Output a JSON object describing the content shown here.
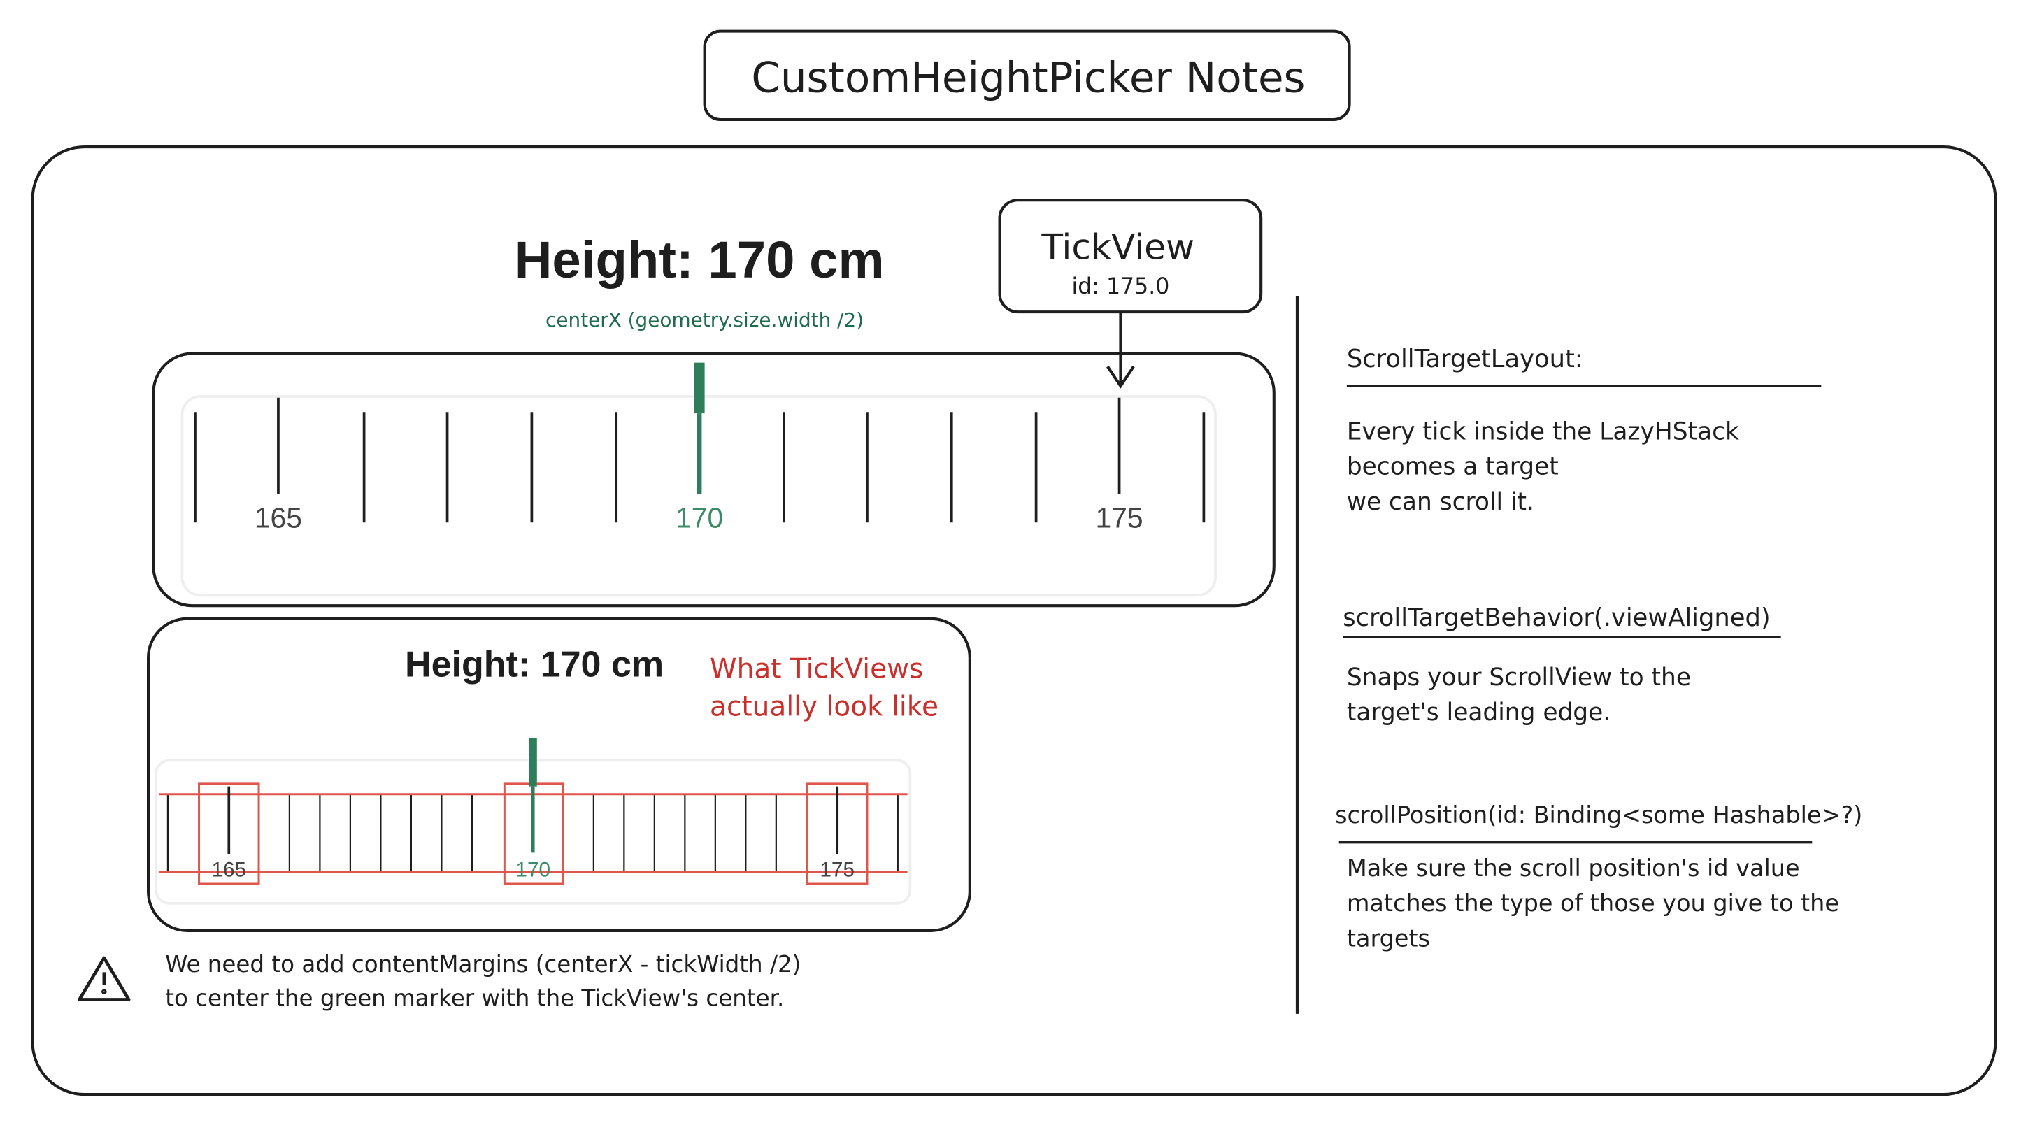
{
  "header": {
    "title": "CustomHeightPicker Notes"
  },
  "picker": {
    "heading": "Height: 170 cm",
    "center_note": "centerX (geometry.size.width /2)",
    "labels": [
      "165",
      "170",
      "175"
    ]
  },
  "tickview": {
    "title": "TickView",
    "id": "id: 175.0"
  },
  "debug": {
    "heading": "Height: 170 cm",
    "note": [
      "What TickViews",
      "actually look like"
    ],
    "labels": [
      "165",
      "170",
      "175"
    ]
  },
  "warning": {
    "lines": [
      "We need to add contentMargins (centerX - tickWidth /2)",
      "to center the green marker with the TickView's center."
    ]
  },
  "notes": [
    {
      "heading": "ScrollTargetLayout:",
      "body": [
        "Every tick inside the LazyHStack",
        "becomes a target",
        "we can scroll it."
      ]
    },
    {
      "heading": "scrollTargetBehavior(.viewAligned)",
      "body": [
        "Snaps your ScrollView to the",
        "target's leading edge."
      ]
    },
    {
      "heading": "scrollPosition(id: Binding<some Hashable>?)",
      "body": [
        "Make sure the scroll position's id value",
        "matches the type of those you give to the",
        "targets"
      ]
    }
  ]
}
